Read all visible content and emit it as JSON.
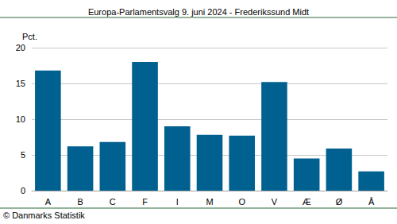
{
  "chart_data": {
    "type": "bar",
    "title": "Europa-Parlamentsvalg 9. juni 2024 - Frederikssund Midt",
    "y_label": "Pct.",
    "source": "© Danmarks Statistik",
    "categories": [
      "A",
      "B",
      "C",
      "F",
      "I",
      "M",
      "O",
      "V",
      "Æ",
      "Ø",
      "Å"
    ],
    "values": [
      16.8,
      6.2,
      6.8,
      18.0,
      9.0,
      7.8,
      7.7,
      15.2,
      4.5,
      5.9,
      2.7
    ],
    "color": "#00608f",
    "ylim": [
      0,
      20
    ],
    "yticks": [
      0,
      5,
      10,
      15,
      20
    ],
    "grid": true
  }
}
